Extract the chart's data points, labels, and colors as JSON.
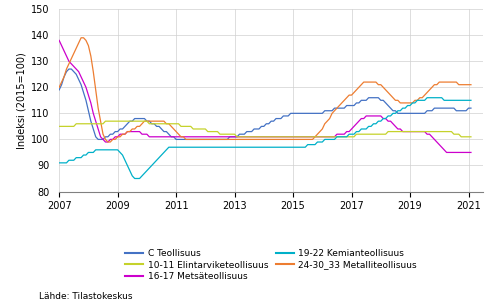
{
  "ylabel": "Indeksi (2015=100)",
  "source": "Lähde: Tilastokeskus",
  "ylim": [
    80,
    150
  ],
  "yticks": [
    80,
    90,
    100,
    110,
    120,
    130,
    140,
    150
  ],
  "xticks": [
    2007,
    2009,
    2011,
    2013,
    2015,
    2017,
    2019,
    2021
  ],
  "xlim_end": 2021.5,
  "series": {
    "C Teollisuus": {
      "color": "#4472c4",
      "data": [
        119,
        121,
        124,
        126,
        127,
        127,
        126,
        125,
        123,
        121,
        118,
        115,
        111,
        107,
        104,
        101,
        100,
        100,
        100,
        101,
        101,
        102,
        102,
        103,
        103,
        104,
        104,
        105,
        106,
        107,
        107,
        108,
        108,
        108,
        108,
        108,
        107,
        107,
        106,
        106,
        105,
        105,
        104,
        103,
        103,
        102,
        101,
        101,
        100,
        100,
        100,
        100,
        100,
        100,
        100,
        100,
        100,
        100,
        100,
        100,
        100,
        100,
        100,
        100,
        100,
        100,
        100,
        100,
        100,
        100,
        101,
        101,
        101,
        101,
        102,
        102,
        102,
        103,
        103,
        103,
        104,
        104,
        104,
        105,
        105,
        106,
        106,
        107,
        107,
        108,
        108,
        108,
        109,
        109,
        109,
        110,
        110,
        110,
        110,
        110,
        110,
        110,
        110,
        110,
        110,
        110,
        110,
        110,
        110,
        111,
        111,
        111,
        111,
        112,
        112,
        112,
        112,
        112,
        113,
        113,
        113,
        113,
        114,
        114,
        115,
        115,
        115,
        116,
        116,
        116,
        116,
        116,
        115,
        115,
        114,
        113,
        112,
        111,
        111,
        110,
        110,
        110,
        110,
        110,
        110,
        110,
        110,
        110,
        110,
        110,
        110,
        111,
        111,
        111,
        112,
        112,
        112,
        112,
        112,
        112,
        112,
        112,
        112,
        111,
        111,
        111,
        111,
        111,
        112,
        112
      ]
    },
    "16-17 Metsäteollisuus": {
      "color": "#cc00cc",
      "data": [
        138,
        136,
        134,
        132,
        130,
        129,
        128,
        127,
        126,
        124,
        122,
        120,
        117,
        114,
        110,
        107,
        104,
        101,
        100,
        99,
        99,
        100,
        100,
        101,
        101,
        102,
        102,
        102,
        103,
        103,
        103,
        103,
        103,
        103,
        102,
        102,
        102,
        101,
        101,
        101,
        101,
        101,
        101,
        101,
        101,
        101,
        101,
        101,
        101,
        101,
        101,
        101,
        101,
        101,
        101,
        101,
        101,
        101,
        101,
        101,
        101,
        101,
        101,
        101,
        101,
        101,
        101,
        101,
        101,
        101,
        101,
        101,
        101,
        101,
        101,
        101,
        101,
        101,
        101,
        101,
        101,
        101,
        101,
        101,
        101,
        101,
        101,
        101,
        101,
        101,
        101,
        101,
        101,
        101,
        101,
        101,
        101,
        101,
        101,
        101,
        101,
        101,
        101,
        101,
        101,
        101,
        101,
        101,
        101,
        101,
        101,
        101,
        101,
        101,
        102,
        102,
        102,
        102,
        103,
        103,
        104,
        105,
        106,
        107,
        108,
        108,
        109,
        109,
        109,
        109,
        109,
        109,
        109,
        108,
        108,
        107,
        107,
        106,
        105,
        104,
        104,
        103,
        103,
        103,
        103,
        103,
        103,
        103,
        103,
        103,
        103,
        102,
        102,
        101,
        100,
        99,
        98,
        97,
        96,
        95,
        95,
        95,
        95,
        95,
        95,
        95,
        95,
        95,
        95,
        95
      ]
    },
    "24-30_33 Metalliteollisuus": {
      "color": "#ed7d31",
      "data": [
        120,
        122,
        124,
        127,
        129,
        131,
        133,
        135,
        137,
        139,
        139,
        138,
        136,
        132,
        126,
        119,
        112,
        107,
        102,
        100,
        99,
        99,
        100,
        100,
        101,
        101,
        102,
        102,
        103,
        103,
        104,
        104,
        105,
        105,
        106,
        107,
        107,
        107,
        107,
        107,
        107,
        107,
        107,
        107,
        106,
        106,
        105,
        104,
        103,
        102,
        101,
        101,
        100,
        100,
        100,
        100,
        100,
        100,
        100,
        100,
        100,
        100,
        100,
        100,
        100,
        100,
        100,
        100,
        100,
        100,
        100,
        100,
        100,
        100,
        100,
        100,
        100,
        100,
        100,
        100,
        100,
        100,
        100,
        100,
        100,
        100,
        100,
        100,
        100,
        100,
        100,
        100,
        100,
        100,
        100,
        100,
        100,
        100,
        100,
        100,
        100,
        100,
        100,
        100,
        100,
        101,
        102,
        103,
        104,
        106,
        107,
        108,
        110,
        111,
        112,
        113,
        114,
        115,
        116,
        117,
        117,
        118,
        119,
        120,
        121,
        122,
        122,
        122,
        122,
        122,
        122,
        121,
        121,
        120,
        119,
        118,
        117,
        116,
        115,
        115,
        114,
        114,
        114,
        114,
        114,
        114,
        115,
        115,
        116,
        116,
        117,
        118,
        119,
        120,
        121,
        121,
        122,
        122,
        122,
        122,
        122,
        122,
        122,
        122,
        121,
        121,
        121,
        121,
        121,
        121
      ]
    },
    "10-11 Elintarviketeollisuus": {
      "color": "#c5d22b",
      "data": [
        105,
        105,
        105,
        105,
        105,
        105,
        105,
        106,
        106,
        106,
        106,
        106,
        106,
        106,
        106,
        106,
        106,
        106,
        106,
        107,
        107,
        107,
        107,
        107,
        107,
        107,
        107,
        107,
        107,
        107,
        107,
        107,
        107,
        107,
        107,
        107,
        107,
        106,
        106,
        106,
        106,
        106,
        106,
        106,
        106,
        106,
        106,
        106,
        106,
        106,
        105,
        105,
        105,
        105,
        105,
        104,
        104,
        104,
        104,
        104,
        104,
        103,
        103,
        103,
        103,
        103,
        102,
        102,
        102,
        102,
        102,
        102,
        102,
        101,
        101,
        101,
        101,
        101,
        101,
        101,
        101,
        101,
        101,
        101,
        101,
        101,
        101,
        101,
        101,
        101,
        101,
        101,
        101,
        101,
        101,
        101,
        101,
        101,
        101,
        101,
        101,
        101,
        101,
        101,
        101,
        101,
        101,
        101,
        101,
        101,
        101,
        101,
        101,
        101,
        101,
        101,
        101,
        101,
        101,
        101,
        101,
        101,
        102,
        102,
        102,
        102,
        102,
        102,
        102,
        102,
        102,
        102,
        102,
        102,
        102,
        103,
        103,
        103,
        103,
        103,
        103,
        103,
        103,
        103,
        103,
        103,
        103,
        103,
        103,
        103,
        103,
        103,
        103,
        103,
        103,
        103,
        103,
        103,
        103,
        103,
        103,
        103,
        102,
        102,
        102,
        101,
        101,
        101,
        101,
        101
      ]
    },
    "19-22 Kemianteollisuus": {
      "color": "#00b0c8",
      "data": [
        91,
        91,
        91,
        91,
        92,
        92,
        92,
        93,
        93,
        93,
        94,
        94,
        95,
        95,
        95,
        96,
        96,
        96,
        96,
        96,
        96,
        96,
        96,
        96,
        96,
        95,
        94,
        92,
        90,
        88,
        86,
        85,
        85,
        85,
        86,
        87,
        88,
        89,
        90,
        91,
        92,
        93,
        94,
        95,
        96,
        97,
        97,
        97,
        97,
        97,
        97,
        97,
        97,
        97,
        97,
        97,
        97,
        97,
        97,
        97,
        97,
        97,
        97,
        97,
        97,
        97,
        97,
        97,
        97,
        97,
        97,
        97,
        97,
        97,
        97,
        97,
        97,
        97,
        97,
        97,
        97,
        97,
        97,
        97,
        97,
        97,
        97,
        97,
        97,
        97,
        97,
        97,
        97,
        97,
        97,
        97,
        97,
        97,
        97,
        97,
        97,
        97,
        98,
        98,
        98,
        98,
        99,
        99,
        99,
        100,
        100,
        100,
        100,
        100,
        101,
        101,
        101,
        101,
        101,
        102,
        102,
        102,
        103,
        103,
        104,
        104,
        104,
        105,
        105,
        106,
        106,
        107,
        107,
        108,
        108,
        109,
        109,
        110,
        110,
        111,
        111,
        112,
        112,
        113,
        113,
        114,
        114,
        115,
        115,
        115,
        115,
        116,
        116,
        116,
        116,
        116,
        116,
        116,
        115,
        115,
        115,
        115,
        115,
        115,
        115,
        115,
        115,
        115,
        115,
        115
      ]
    }
  }
}
